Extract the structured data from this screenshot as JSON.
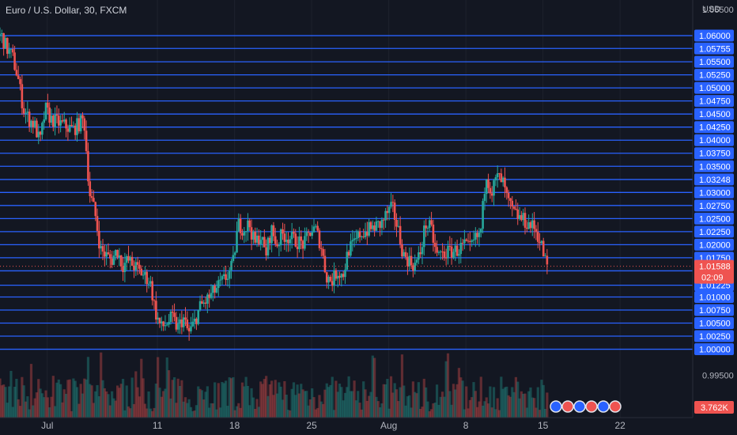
{
  "header": {
    "title": "Euro / U.S. Dollar, 30, FXCM",
    "currency": "USD"
  },
  "colors": {
    "background": "#131722",
    "level_line": "#2962ff",
    "up": "#26a69a",
    "down": "#ef5350",
    "axis_text": "#b2b5be"
  },
  "chart_data": {
    "type": "candlestick",
    "title": "Euro / U.S. Dollar, 30, FXCM",
    "ylabel": "USD",
    "ylim": [
      0.9935,
      1.0675
    ],
    "plain_ticks": [
      "1.06500",
      "0.99500"
    ],
    "levels": [
      "1.06000",
      "1.05755",
      "1.05500",
      "1.05250",
      "1.05000",
      "1.04750",
      "1.04500",
      "1.04250",
      "1.04000",
      "1.03750",
      "1.03500",
      "1.03248",
      "1.03000",
      "1.02750",
      "1.02500",
      "1.02250",
      "1.02000",
      "1.01750",
      "1.01500",
      "1.01225",
      "1.01000",
      "1.00750",
      "1.00500",
      "1.00250",
      "1.00000"
    ],
    "current_price": {
      "value": "1.01588",
      "countdown": "02:09"
    },
    "volume_label": "3.762K",
    "x_ticks": [
      "Jul",
      "11",
      "18",
      "25",
      "Aug",
      "8",
      "15",
      "22"
    ],
    "price_path": [
      [
        "Jun 27 00:00",
        1.06
      ],
      [
        "Jun 27 12:00",
        1.0575
      ],
      [
        "Jun 28 00:00",
        1.056
      ],
      [
        "Jun 28 12:00",
        1.052
      ],
      [
        "Jun 29 00:00",
        1.046
      ],
      [
        "Jun 29 12:00",
        1.044
      ],
      [
        "Jun 30 00:00",
        1.043
      ],
      [
        "Jun 30 12:00",
        1.0395
      ],
      [
        "Jul 1 00:00",
        1.046
      ],
      [
        "Jul 1 12:00",
        1.044
      ],
      [
        "Jul 3 12:00",
        1.042
      ],
      [
        "Jul 4 12:00",
        1.044
      ],
      [
        "Jul 5 00:00",
        1.03
      ],
      [
        "Jul 5 12:00",
        1.026
      ],
      [
        "Jul 6 00:00",
        1.019
      ],
      [
        "Jul 7 00:00",
        1.017
      ],
      [
        "Jul 7 12:00",
        1.019
      ],
      [
        "Jul 8 00:00",
        1.016
      ],
      [
        "Jul 8 12:00",
        1.017
      ],
      [
        "Jul 10 12:00",
        1.013
      ],
      [
        "Jul 11 00:00",
        1.007
      ],
      [
        "Jul 11 12:00",
        1.004
      ],
      [
        "Jul 12 00:00",
        1.005
      ],
      [
        "Jul 12 12:00",
        1.006
      ],
      [
        "Jul 13 00:00",
        1.004
      ],
      [
        "Jul 13 12:00",
        1.006
      ],
      [
        "Jul 14 00:00",
        1.003
      ],
      [
        "Jul 14 12:00",
        1.005
      ],
      [
        "Jul 15 00:00",
        1.008
      ],
      [
        "Jul 15 12:00",
        1.009
      ],
      [
        "Jul 17 12:00",
        1.014
      ],
      [
        "Jul 18 00:00",
        1.016
      ],
      [
        "Jul 18 12:00",
        1.024
      ],
      [
        "Jul 19 00:00",
        1.023
      ],
      [
        "Jul 19 12:00",
        1.024
      ],
      [
        "Jul 20 00:00",
        1.02
      ],
      [
        "Jul 20 12:00",
        1.022
      ],
      [
        "Jul 21 00:00",
        1.018
      ],
      [
        "Jul 21 12:00",
        1.023
      ],
      [
        "Jul 22 00:00",
        1.02
      ],
      [
        "Jul 22 12:00",
        1.022
      ],
      [
        "Jul 24 12:00",
        1.02
      ],
      [
        "Jul 25 00:00",
        1.0225
      ],
      [
        "Jul 25 12:00",
        1.023
      ],
      [
        "Jul 26 00:00",
        1.02
      ],
      [
        "Jul 26 12:00",
        1.014
      ],
      [
        "Jul 27 00:00",
        1.013
      ],
      [
        "Jul 27 12:00",
        1.015
      ],
      [
        "Jul 28 00:00",
        1.014
      ],
      [
        "Jul 28 12:00",
        1.019
      ],
      [
        "Jul 29 00:00",
        1.02
      ],
      [
        "Jul 29 12:00",
        1.022
      ],
      [
        "Jul 31 12:00",
        1.024
      ],
      [
        "Aug 1 00:00",
        1.026
      ],
      [
        "Aug 1 12:00",
        1.027
      ],
      [
        "Aug 2 00:00",
        1.023
      ],
      [
        "Aug 2 12:00",
        1.018
      ],
      [
        "Aug 3 00:00",
        1.017
      ],
      [
        "Aug 3 12:00",
        1.016
      ],
      [
        "Aug 4 00:00",
        1.018
      ],
      [
        "Aug 4 12:00",
        1.024
      ],
      [
        "Aug 5 00:00",
        1.023
      ],
      [
        "Aug 5 12:00",
        1.018
      ],
      [
        "Aug 7 12:00",
        1.019
      ],
      [
        "Aug 8 00:00",
        1.02
      ],
      [
        "Aug 8 12:00",
        1.019
      ],
      [
        "Aug 9 00:00",
        1.021
      ],
      [
        "Aug 9 12:00",
        1.022
      ],
      [
        "Aug 10 00:00",
        1.034
      ],
      [
        "Aug 10 12:00",
        1.03
      ],
      [
        "Aug 11 00:00",
        1.033
      ],
      [
        "Aug 11 12:00",
        1.032
      ],
      [
        "Aug 12 00:00",
        1.028
      ],
      [
        "Aug 12 12:00",
        1.026
      ],
      [
        "Aug 14 12:00",
        1.023
      ],
      [
        "Aug 15 00:00",
        1.02
      ],
      [
        "Aug 15 12:00",
        1.0159
      ]
    ]
  }
}
